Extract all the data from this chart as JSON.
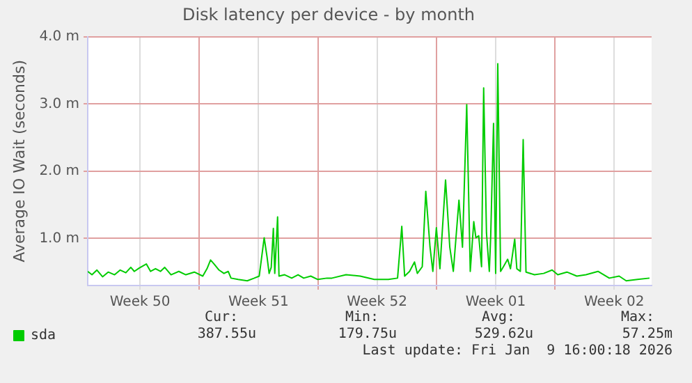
{
  "chart_data": {
    "type": "line",
    "title": "Disk latency per device - by month",
    "ylabel": "Average IO Wait (seconds)",
    "x": [
      "2025-12-08T10:00",
      "2025-12-08T16:00",
      "2025-12-08T23:00",
      "2025-12-09T07:00",
      "2025-12-09T15:00",
      "2025-12-10T00:00",
      "2025-12-10T08:00",
      "2025-12-10T16:00",
      "2025-12-10T23:00",
      "2025-12-11T04:00",
      "2025-12-11T11:00",
      "2025-12-11T21:00",
      "2025-12-12T03:00",
      "2025-12-12T10:00",
      "2025-12-12T17:00",
      "2025-12-12T23:00",
      "2025-12-13T08:00",
      "2025-12-13T19:00",
      "2025-12-14T05:00",
      "2025-12-14T17:00",
      "2025-12-15T05:00",
      "2025-12-15T11:00",
      "2025-12-15T16:00",
      "2025-12-15T21:00",
      "2025-12-16T04:00",
      "2025-12-16T11:00",
      "2025-12-16T17:00",
      "2025-12-16T21:00",
      "2025-12-17T07:00",
      "2025-12-17T20:00",
      "2025-12-18T06:00",
      "2025-12-18T13:00",
      "2025-12-18T20:00",
      "2025-12-19T00:00",
      "2025-12-19T03:00",
      "2025-12-19T06:00",
      "2025-12-19T09:00",
      "2025-12-19T11:00",
      "2025-12-19T15:00",
      "2025-12-19T17:00",
      "2025-12-20T01:00",
      "2025-12-20T11:00",
      "2025-12-20T20:00",
      "2025-12-21T04:00",
      "2025-12-21T14:00",
      "2025-12-22T00:00",
      "2025-12-22T13:00",
      "2025-12-22T20:00",
      "2025-12-23T16:00",
      "2025-12-24T12:00",
      "2025-12-25T08:00",
      "2025-12-26T04:00",
      "2025-12-26T17:00",
      "2025-12-26T23:00",
      "2025-12-27T03:00",
      "2025-12-27T10:00",
      "2025-12-27T17:00",
      "2025-12-27T21:00",
      "2025-12-28T04:00",
      "2025-12-28T09:00",
      "2025-12-28T15:00",
      "2025-12-28T19:00",
      "2025-12-29T00:00",
      "2025-12-29T05:00",
      "2025-12-29T13:00",
      "2025-12-29T19:00",
      "2025-12-30T00:00",
      "2025-12-30T08:00",
      "2025-12-30T13:00",
      "2025-12-30T19:00",
      "2025-12-31T00:00",
      "2025-12-31T05:00",
      "2025-12-31T08:00",
      "2025-12-31T12:00",
      "2025-12-31T16:00",
      "2025-12-31T19:00",
      "2025-12-31T23:00",
      "2026-01-01T03:00",
      "2026-01-01T05:00",
      "2026-01-01T09:00",
      "2026-01-01T12:00",
      "2026-01-01T15:00",
      "2026-01-01T19:00",
      "2026-01-01T23:00",
      "2026-01-02T05:00",
      "2026-01-02T09:00",
      "2026-01-02T15:00",
      "2026-01-02T18:00",
      "2026-01-02T23:00",
      "2026-01-03T03:00",
      "2026-01-03T07:00",
      "2026-01-03T19:00",
      "2026-01-04T08:00",
      "2026-01-04T20:00",
      "2026-01-05T04:00",
      "2026-01-05T17:00",
      "2026-01-06T07:00",
      "2026-01-06T20:00",
      "2026-01-07T13:00",
      "2026-01-08T05:00",
      "2026-01-08T19:00",
      "2026-01-09T05:00",
      "2026-01-09T21:00",
      "2026-01-10T14:00"
    ],
    "series": [
      {
        "name": "sda",
        "color": "#00cc00",
        "values": [
          0.51,
          0.46,
          0.53,
          0.43,
          0.5,
          0.46,
          0.53,
          0.49,
          0.57,
          0.51,
          0.56,
          0.62,
          0.51,
          0.55,
          0.51,
          0.57,
          0.46,
          0.51,
          0.46,
          0.5,
          0.44,
          0.55,
          0.68,
          0.62,
          0.53,
          0.48,
          0.51,
          0.41,
          0.39,
          0.37,
          0.41,
          0.44,
          1.01,
          0.73,
          0.48,
          0.57,
          1.15,
          0.48,
          1.32,
          0.44,
          0.46,
          0.41,
          0.46,
          0.41,
          0.44,
          0.39,
          0.41,
          0.41,
          0.46,
          0.44,
          0.39,
          0.39,
          0.41,
          1.18,
          0.44,
          0.51,
          0.65,
          0.48,
          0.58,
          1.7,
          0.87,
          0.51,
          1.16,
          0.55,
          1.87,
          0.87,
          0.51,
          1.57,
          0.87,
          2.99,
          0.51,
          1.25,
          1.01,
          1.04,
          0.58,
          3.24,
          1.08,
          0.51,
          1.04,
          2.71,
          0.48,
          3.6,
          0.51,
          0.58,
          0.69,
          0.55,
          0.99,
          0.55,
          0.51,
          2.47,
          0.5,
          0.46,
          0.48,
          0.53,
          0.46,
          0.5,
          0.44,
          0.46,
          0.51,
          0.41,
          0.44,
          0.37,
          0.39,
          0.41
        ]
      }
    ],
    "xlim": [
      "2025-12-08T10:00",
      "2026-01-10T17:00"
    ],
    "xticks": [
      {
        "value": "2025-12-11T12:00",
        "label": "Week 50"
      },
      {
        "value": "2025-12-15T00:00",
        "label": null
      },
      {
        "value": "2025-12-18T12:00",
        "label": "Week 51"
      },
      {
        "value": "2025-12-22T00:00",
        "label": null
      },
      {
        "value": "2025-12-25T12:00",
        "label": "Week 52"
      },
      {
        "value": "2025-12-29T00:00",
        "label": null
      },
      {
        "value": "2026-01-01T12:00",
        "label": "Week 01"
      },
      {
        "value": "2026-01-05T00:00",
        "label": null
      },
      {
        "value": "2026-01-08T12:00",
        "label": "Week 02"
      }
    ],
    "ylim": [
      0.3,
      4.0
    ],
    "yticks": [
      {
        "value": 1,
        "label": "1.0 m"
      },
      {
        "value": 2,
        "label": "2.0 m"
      },
      {
        "value": 3,
        "label": "3.0 m"
      },
      {
        "value": 4,
        "label": "4.0 m"
      }
    ],
    "grid": true,
    "legend": "bottom left",
    "marker": "none",
    "line_style": "solid",
    "annotations": [
      "Cur:",
      "387.55u",
      "Min:",
      "179.75u",
      "Avg:",
      "529.62u",
      "Max:",
      "57.25m",
      "Last update: Fri Jan  9 16:00:18 2026"
    ]
  }
}
